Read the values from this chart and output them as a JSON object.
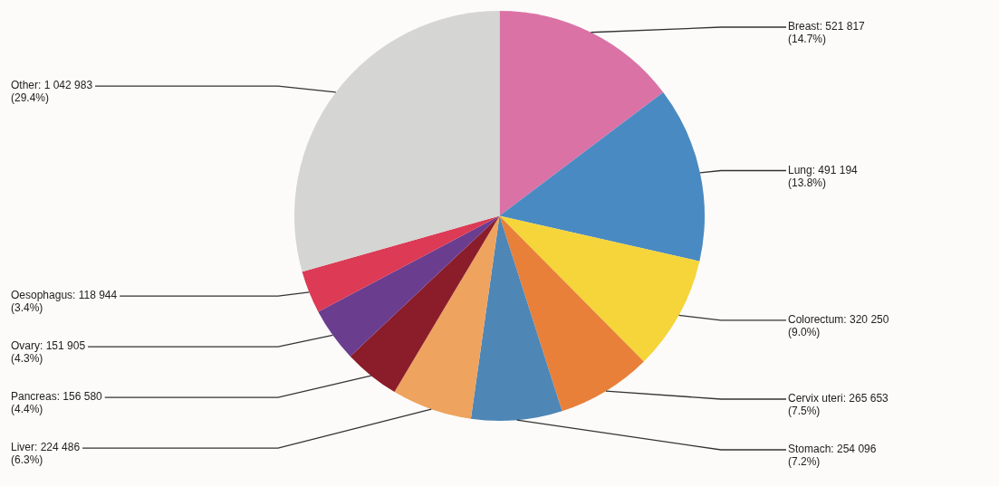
{
  "chart_data": {
    "type": "pie",
    "categories": [
      "Breast",
      "Lung",
      "Colorectum",
      "Cervix uteri",
      "Stomach",
      "Liver",
      "Pancreas",
      "Ovary",
      "Oesophagus",
      "Other"
    ],
    "values": [
      521817,
      491194,
      320250,
      265653,
      254096,
      224486,
      156580,
      151905,
      118944,
      1042983
    ],
    "colors": [
      "#db72a6",
      "#4a8ac2",
      "#f5d53a",
      "#e8803a",
      "#4e86b5",
      "#eea35e",
      "#8b1c2a",
      "#6b3d8f",
      "#dc3a55",
      "#d5d5d3"
    ],
    "value_labels": [
      "521 817\n(14.7%)",
      "491 194\n(13.8%)",
      "320 250\n(9.0%)",
      "265 653\n(7.5%)",
      "254 096\n(7.2%)",
      "224 486\n(6.3%)",
      "156 580\n(4.4%)",
      "151 905\n(4.3%)",
      "118 944\n(3.4%)",
      "1 042 983\n(29.4%)"
    ]
  }
}
